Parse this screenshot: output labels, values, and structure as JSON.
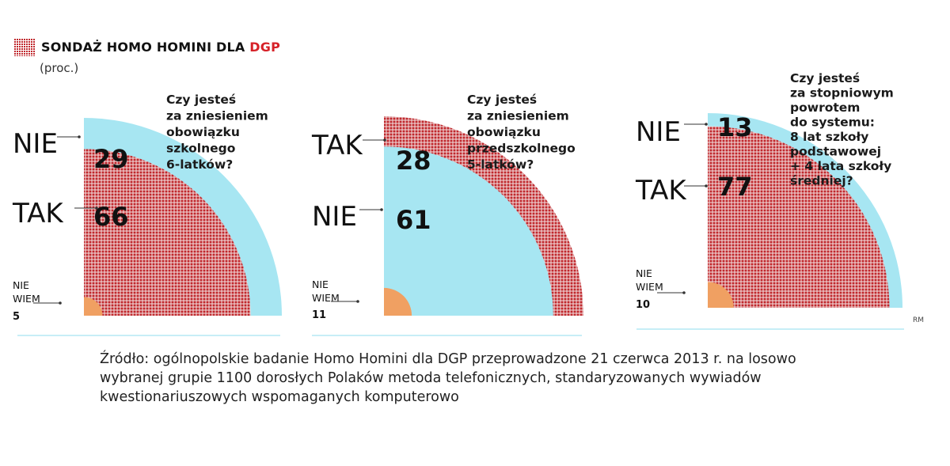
{
  "header": {
    "title_main": "SONDAŻ HOMO HOMINI DLA ",
    "title_brand": "DGP",
    "subtitle": "(proc.)"
  },
  "colors": {
    "yes": "#c0282d",
    "no": "#a7e6f2",
    "dont_know": "#f0a062",
    "divider": "#c7eef7"
  },
  "chart_data": [
    {
      "type": "pie",
      "question": [
        "Czy jesteś",
        "za zniesieniem",
        "obowiązku",
        "szkolnego",
        "6-latków?"
      ],
      "slices": [
        {
          "label": "NIE",
          "value": 29
        },
        {
          "label": "TAK",
          "value": 66
        },
        {
          "label": "NIE WIEM",
          "value": 5
        }
      ]
    },
    {
      "type": "pie",
      "question": [
        "Czy jesteś",
        "za zniesieniem",
        "obowiązku",
        "przedszkolnego",
        "5-latków?"
      ],
      "slices": [
        {
          "label": "TAK",
          "value": 28
        },
        {
          "label": "NIE",
          "value": 61
        },
        {
          "label": "NIE WIEM",
          "value": 11
        }
      ]
    },
    {
      "type": "pie",
      "question": [
        "Czy jesteś",
        "za stopniowym",
        "powrotem",
        "do systemu:",
        "8 lat szkoły",
        "podstawowej",
        "+ 4 lata szkoły",
        "średniej?"
      ],
      "slices": [
        {
          "label": "NIE",
          "value": 13
        },
        {
          "label": "TAK",
          "value": 77
        },
        {
          "label": "NIE WIEM",
          "value": 10
        }
      ]
    }
  ],
  "labels": {
    "dont_know_line1": "NIE",
    "dont_know_line2": "WIEM"
  },
  "credit": "RM",
  "source": "Źródło: ogólnopolskie badanie Homo Homini dla DGP przeprowadzone 21 czerwca 2013 r. na losowo wybranej grupie 1100 dorosłych Polaków metoda telefonicznych, standaryzowanych wywiadów kwestionariuszowych wspomaganych komputerowo"
}
